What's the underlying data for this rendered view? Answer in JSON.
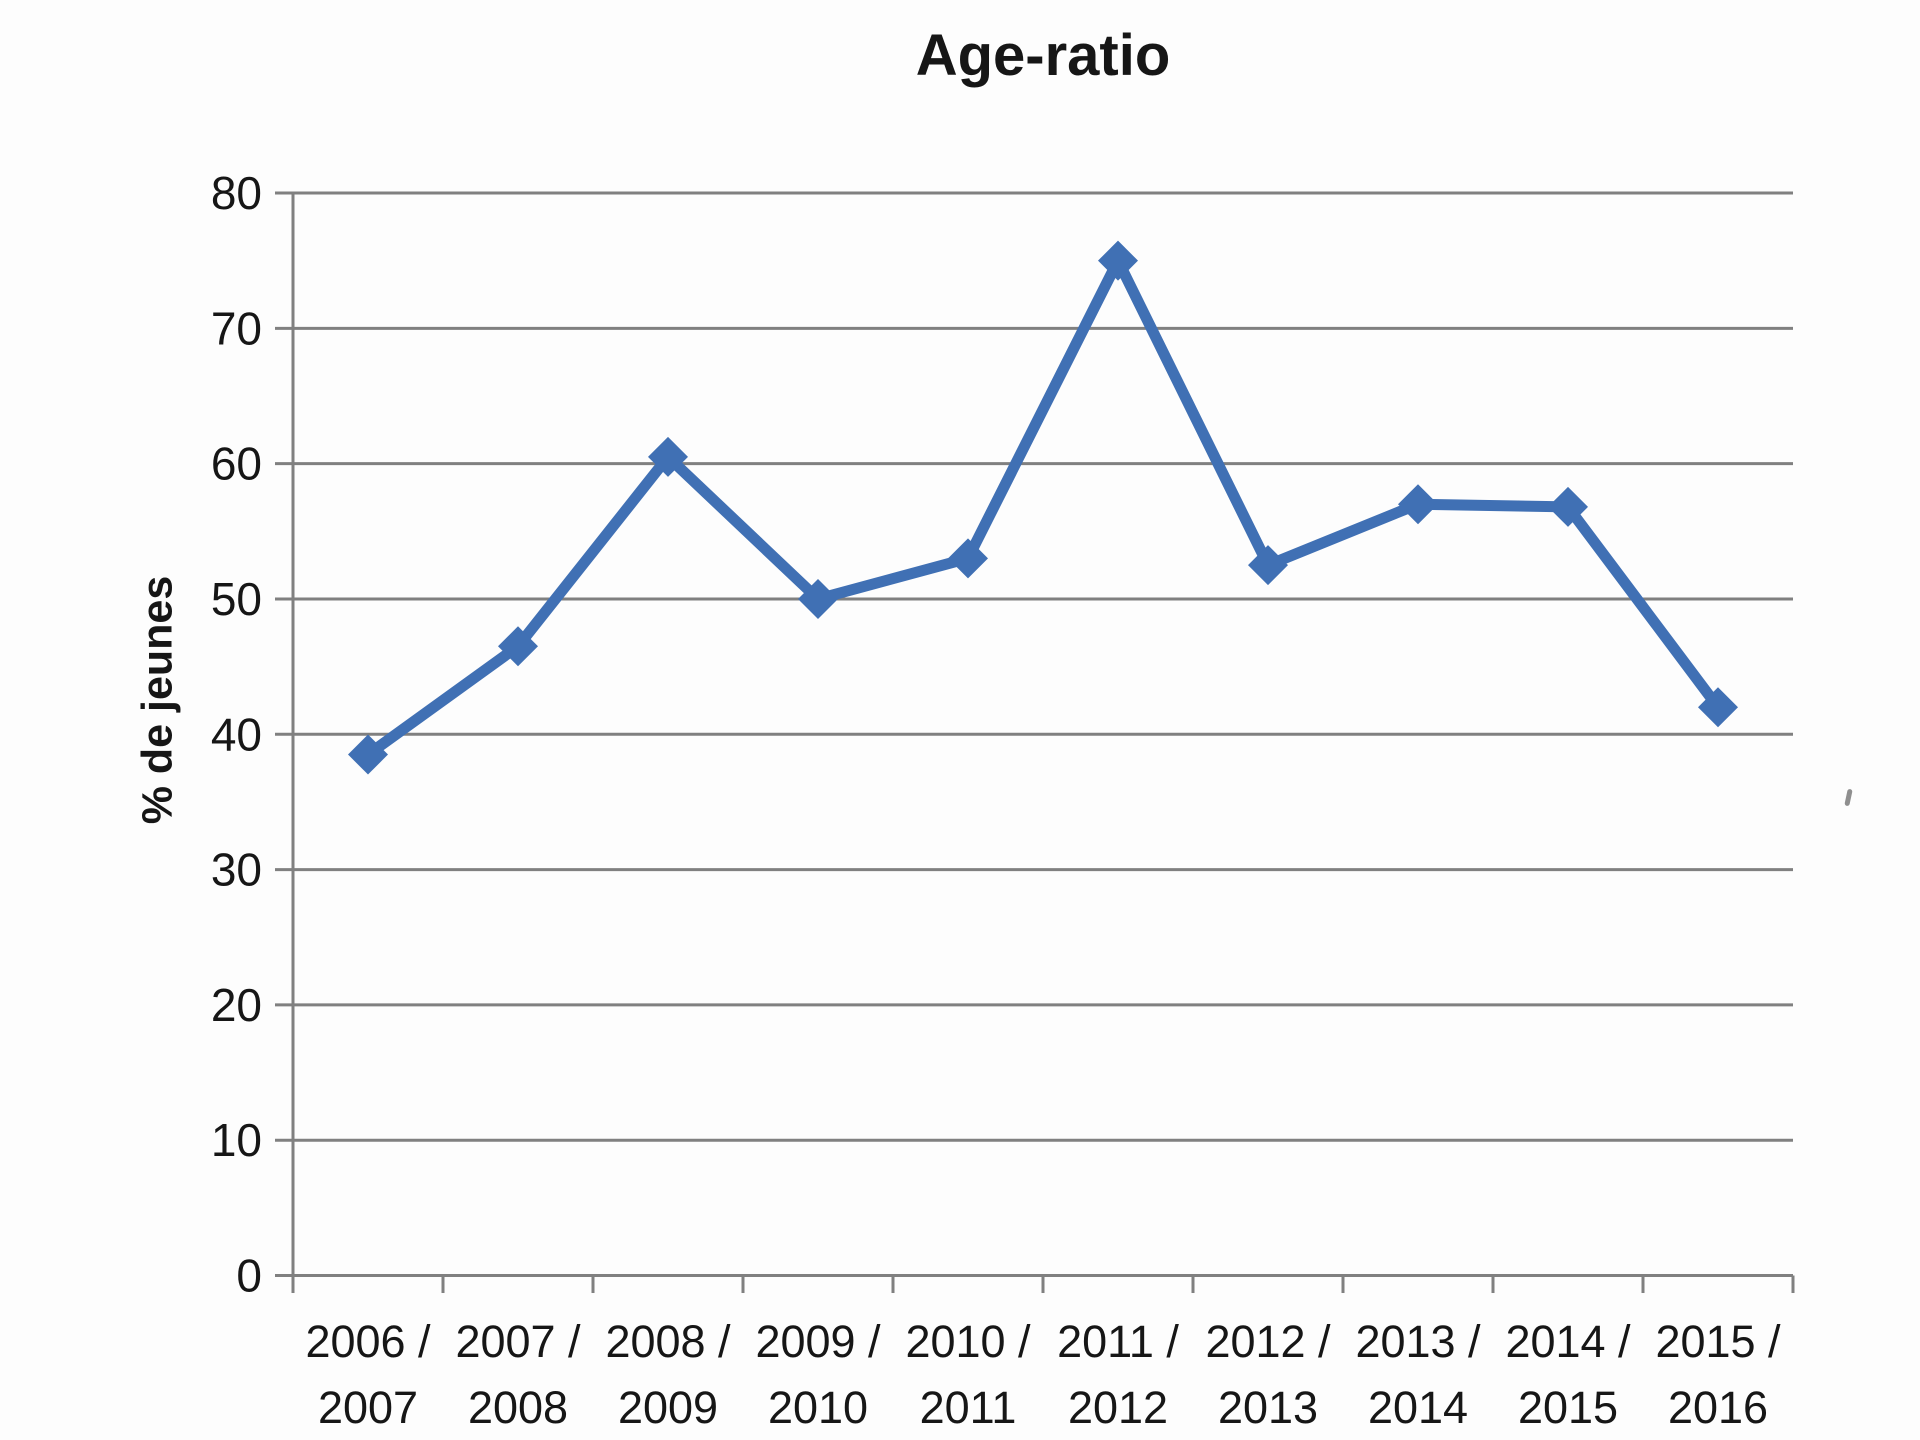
{
  "chart_data": {
    "type": "line",
    "title": "Age-ratio",
    "xlabel": "",
    "ylabel": "% de jeunes",
    "categories": [
      "2006 / 2007",
      "2007 / 2008",
      "2008 / 2009",
      "2009 / 2010",
      "2010 / 2011",
      "2011 / 2012",
      "2012 / 2013",
      "2013 / 2014",
      "2014 / 2015",
      "2015 / 2016"
    ],
    "values": [
      38.5,
      46.5,
      60.5,
      50,
      53,
      75,
      52.5,
      57,
      56.8,
      42
    ],
    "ylim": [
      0,
      80
    ],
    "yticks": [
      0,
      10,
      20,
      30,
      40,
      50,
      60,
      70,
      80
    ],
    "grid": true,
    "legend_position": "none",
    "marker": "diamond",
    "line_color": "#4070B4",
    "gridline_color": "#808080",
    "axis_color": "#808080",
    "text_color": "#161616"
  }
}
